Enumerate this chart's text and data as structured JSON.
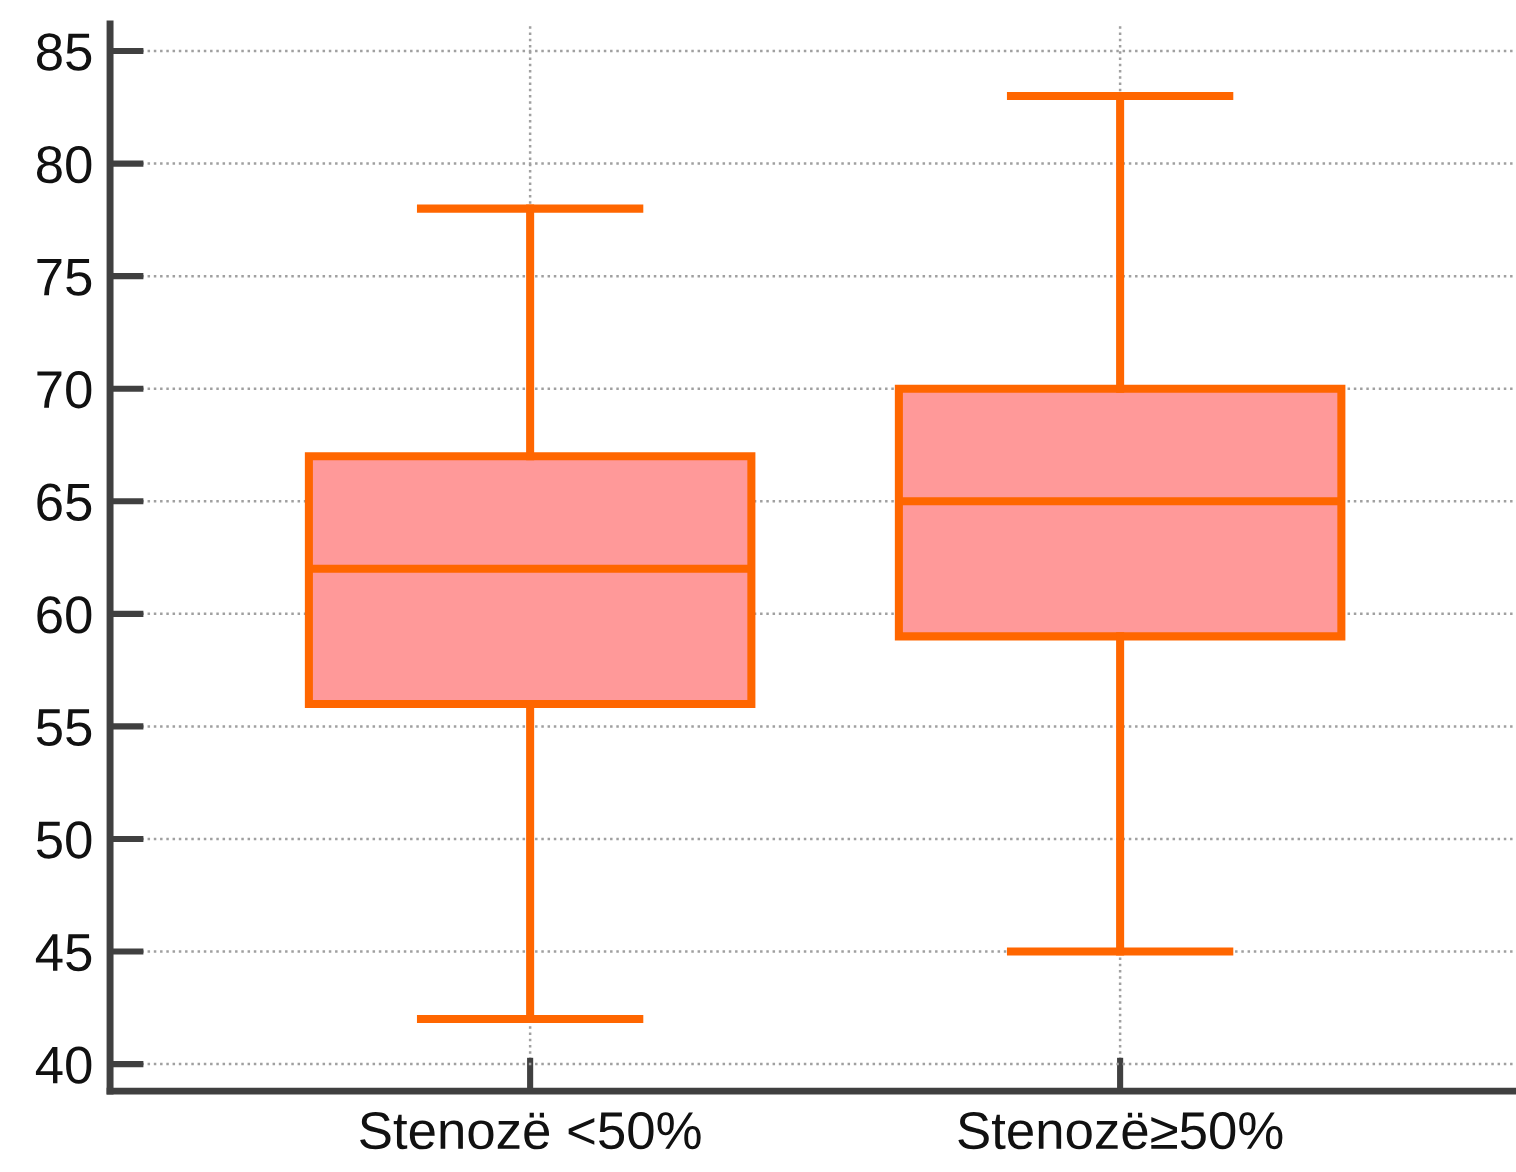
{
  "chart_data": {
    "type": "box",
    "categories": [
      "Stenozë <50%",
      "Stenozë≥50%"
    ],
    "series": [
      {
        "color": "#ff6600",
        "colors": [
          "#ff9999",
          "#ff9999"
        ],
        "boxes": [
          {
            "low": 42,
            "q1": 56,
            "median": 62,
            "q3": 67,
            "high": 78
          },
          {
            "low": 45,
            "q1": 59,
            "median": 65,
            "q3": 70,
            "high": 83
          }
        ]
      }
    ],
    "ylim": [
      38.8,
      86.2
    ],
    "yticks": [
      40,
      45,
      50,
      55,
      60,
      65,
      70,
      75,
      80,
      85
    ],
    "grid": true
  }
}
